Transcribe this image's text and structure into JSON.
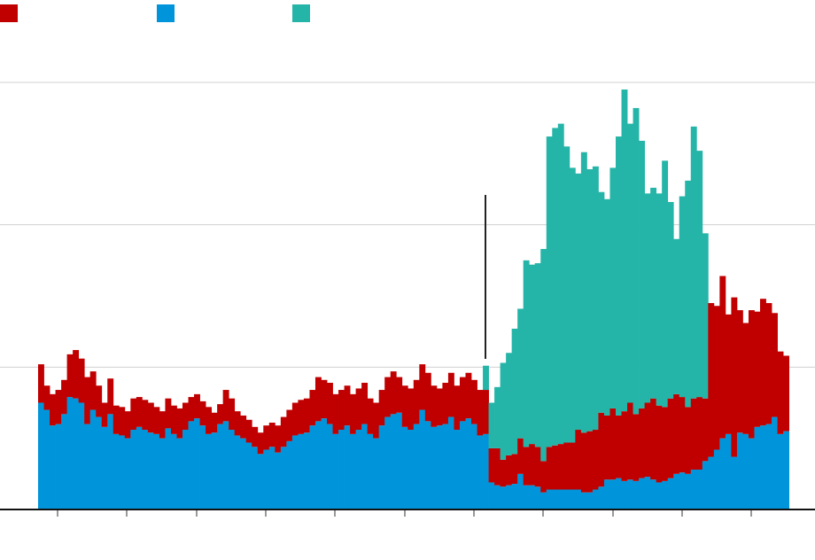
{
  "chart_data": {
    "type": "stacked_bar",
    "series": [
      {
        "color": "#c00000",
        "values": [
          27,
          17,
          22,
          24,
          24,
          30,
          34,
          31,
          33,
          27,
          22,
          17,
          25,
          20,
          20,
          19,
          22,
          21,
          21,
          21,
          19,
          19,
          21,
          20,
          21,
          19,
          17,
          17,
          17,
          19,
          14,
          14,
          22,
          22,
          17,
          16,
          16,
          14,
          15,
          17,
          17,
          19,
          21,
          22,
          23,
          24,
          24,
          25,
          31,
          27,
          29,
          28,
          28,
          28,
          28,
          29,
          29,
          25,
          25,
          25,
          28,
          30,
          25,
          29,
          29,
          31,
          32,
          34,
          29,
          26,
          29,
          31,
          31,
          31,
          32,
          31,
          32,
          31,
          24,
          26,
          19,
          21,
          21,
          25,
          27,
          29,
          28,
          22,
          30,
          31,
          32,
          33,
          33,
          42,
          42,
          43,
          42,
          52,
          45,
          50,
          44,
          49,
          54,
          47,
          49,
          52,
          57,
          54,
          52,
          56,
          56,
          53,
          47,
          50,
          51,
          44,
          108,
          101,
          114,
          84,
          112,
          86,
          78,
          90,
          81,
          89,
          85,
          73,
          58,
          53
        ]
      },
      {
        "color": "#0095db",
        "values": [
          75,
          70,
          59,
          60,
          67,
          79,
          78,
          75,
          60,
          70,
          65,
          58,
          67,
          53,
          52,
          50,
          56,
          58,
          56,
          54,
          53,
          50,
          57,
          53,
          50,
          56,
          62,
          64,
          59,
          53,
          54,
          60,
          62,
          56,
          52,
          50,
          47,
          44,
          39,
          42,
          44,
          40,
          44,
          48,
          52,
          53,
          54,
          59,
          62,
          64,
          60,
          53,
          56,
          59,
          53,
          56,
          60,
          53,
          50,
          59,
          65,
          67,
          68,
          58,
          56,
          60,
          70,
          62,
          58,
          59,
          60,
          65,
          56,
          62,
          64,
          60,
          52,
          53,
          19,
          17,
          16,
          17,
          18,
          25,
          17,
          17,
          16,
          12,
          14,
          14,
          14,
          14,
          14,
          14,
          12,
          12,
          14,
          16,
          21,
          21,
          22,
          20,
          21,
          20,
          22,
          23,
          21,
          19,
          20,
          22,
          25,
          26,
          25,
          28,
          28,
          34,
          37,
          42,
          50,
          53,
          37,
          54,
          53,
          50,
          58,
          59,
          60,
          65,
          53,
          55
        ]
      },
      {
        "color": "#25b5a8",
        "values": [
          0,
          0,
          0,
          0,
          0,
          0,
          0,
          0,
          0,
          0,
          0,
          0,
          0,
          0,
          0,
          0,
          0,
          0,
          0,
          0,
          0,
          0,
          0,
          0,
          0,
          0,
          0,
          0,
          0,
          0,
          0,
          0,
          0,
          0,
          0,
          0,
          0,
          0,
          0,
          0,
          0,
          0,
          0,
          0,
          0,
          0,
          0,
          0,
          0,
          0,
          0,
          0,
          0,
          0,
          0,
          0,
          0,
          0,
          0,
          0,
          0,
          0,
          0,
          0,
          0,
          0,
          0,
          0,
          0,
          0,
          0,
          0,
          0,
          0,
          0,
          0,
          0,
          17,
          32,
          43,
          68,
          72,
          88,
          91,
          131,
          126,
          129,
          149,
          218,
          223,
          225,
          208,
          193,
          180,
          197,
          184,
          185,
          155,
          152,
          169,
          196,
          226,
          196,
          215,
          188,
          147,
          148,
          149,
          173,
          138,
          109,
          141,
          159,
          191,
          173,
          116,
          0,
          0,
          0,
          0,
          0,
          0,
          0,
          0,
          0,
          0,
          0,
          0,
          0,
          0
        ]
      }
    ],
    "stack_order": [
      1,
      0,
      2
    ],
    "ylim": [
      0,
      300
    ],
    "yticks": [
      100,
      200,
      300
    ],
    "grid": true
  }
}
